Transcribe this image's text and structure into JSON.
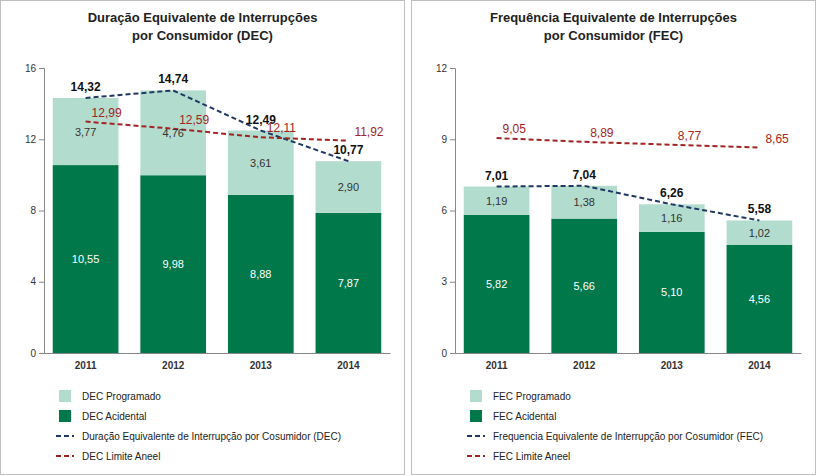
{
  "chart_data": [
    {
      "type": "bar",
      "title": [
        "Duração Equivalente de Interrupções",
        "por Consumidor (DEC)"
      ],
      "categories": [
        "2011",
        "2012",
        "2013",
        "2014"
      ],
      "stacked": true,
      "data_labels": true,
      "grid": false,
      "ylim": [
        0,
        16
      ],
      "yticks": [
        0,
        4,
        8,
        12,
        16
      ],
      "series": [
        {
          "name": "DEC Programado",
          "type": "bar",
          "color": "#b2dccd",
          "values": [
            3.77,
            4.76,
            3.61,
            2.9
          ],
          "value_labels": [
            "3,77",
            "4,76",
            "3,61",
            "2,90"
          ]
        },
        {
          "name": "DEC Acidental",
          "type": "bar",
          "color": "#00784a",
          "values": [
            10.55,
            9.98,
            8.88,
            7.87
          ],
          "value_labels": [
            "10,55",
            "9,98",
            "8,88",
            "7,87"
          ]
        },
        {
          "name": "Duração Equivalente de Interrupção por Cosumidor (DEC)",
          "type": "line",
          "line_style": "dashed",
          "color": "#1f3864",
          "values": [
            14.32,
            14.74,
            12.49,
            10.77
          ],
          "value_labels": [
            "14,32",
            "14,74",
            "12,49",
            "10,77"
          ]
        },
        {
          "name": "DEC Limite Aneel",
          "type": "line",
          "line_style": "dashed",
          "color": "#a52222",
          "values": [
            12.99,
            12.59,
            12.11,
            11.92
          ],
          "value_labels": [
            "12,99",
            "12,59",
            "12,11",
            "11,92"
          ]
        }
      ]
    },
    {
      "type": "bar",
      "title": [
        "Frequência Equivalente de Interrupções",
        "por Consumidor (FEC)"
      ],
      "categories": [
        "2011",
        "2012",
        "2013",
        "2014"
      ],
      "stacked": true,
      "data_labels": true,
      "grid": false,
      "ylim": [
        0,
        12
      ],
      "yticks": [
        0,
        3,
        6,
        9,
        12
      ],
      "series": [
        {
          "name": "FEC Programado",
          "type": "bar",
          "color": "#b2dccd",
          "values": [
            1.19,
            1.38,
            1.16,
            1.02
          ],
          "value_labels": [
            "1,19",
            "1,38",
            "1,16",
            "1,02"
          ]
        },
        {
          "name": "FEC Acidental",
          "type": "bar",
          "color": "#00784a",
          "values": [
            5.82,
            5.66,
            5.1,
            4.56
          ],
          "value_labels": [
            "5,82",
            "5,66",
            "5,10",
            "4,56"
          ]
        },
        {
          "name": "Frequencia Equivalente de Interrupção por Cosumidor (FEC)",
          "type": "line",
          "line_style": "dashed",
          "color": "#1f3864",
          "values": [
            7.01,
            7.04,
            6.26,
            5.58
          ],
          "value_labels": [
            "7,01",
            "7,04",
            "6,26",
            "5,58"
          ]
        },
        {
          "name": "FEC Limite Aneel",
          "type": "line",
          "line_style": "dashed",
          "color": "#a52222",
          "values": [
            9.05,
            8.89,
            8.77,
            8.65
          ],
          "value_labels": [
            "9,05",
            "8,89",
            "8,77",
            "8,65"
          ]
        }
      ]
    }
  ]
}
